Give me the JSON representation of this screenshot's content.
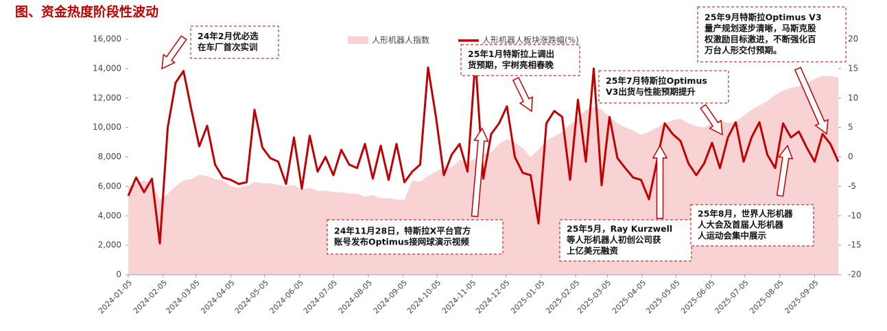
{
  "chart_data": {
    "type": "area-line",
    "title": "图、资金热度阶段性波动",
    "x": [
      "2024-01-05",
      "2024-01-12",
      "2024-01-19",
      "2024-01-26",
      "2024-02-02",
      "2024-02-09",
      "2024-02-16",
      "2024-02-23",
      "2024-03-01",
      "2024-03-08",
      "2024-03-15",
      "2024-03-22",
      "2024-03-29",
      "2024-04-05",
      "2024-04-12",
      "2024-04-19",
      "2024-04-26",
      "2024-05-03",
      "2024-05-10",
      "2024-05-17",
      "2024-05-24",
      "2024-05-31",
      "2024-06-07",
      "2024-06-14",
      "2024-06-21",
      "2024-06-28",
      "2024-07-05",
      "2024-07-12",
      "2024-07-19",
      "2024-07-26",
      "2024-08-02",
      "2024-08-09",
      "2024-08-16",
      "2024-08-23",
      "2024-08-30",
      "2024-09-06",
      "2024-09-13",
      "2024-09-20",
      "2024-09-27",
      "2024-10-04",
      "2024-10-11",
      "2024-10-18",
      "2024-10-25",
      "2024-11-01",
      "2024-11-08",
      "2024-11-15",
      "2024-11-22",
      "2024-11-29",
      "2024-12-06",
      "2024-12-13",
      "2024-12-20",
      "2024-12-27",
      "2025-01-03",
      "2025-01-10",
      "2025-01-17",
      "2025-01-24",
      "2025-01-31",
      "2025-02-07",
      "2025-02-14",
      "2025-02-21",
      "2025-02-28",
      "2025-03-07",
      "2025-03-14",
      "2025-03-21",
      "2025-03-28",
      "2025-04-04",
      "2025-04-11",
      "2025-04-18",
      "2025-04-25",
      "2025-05-02",
      "2025-05-09",
      "2025-05-16",
      "2025-05-23",
      "2025-05-30",
      "2025-06-06",
      "2025-06-13",
      "2025-06-20",
      "2025-06-27",
      "2025-07-04",
      "2025-07-11",
      "2025-07-18",
      "2025-07-25",
      "2025-08-01",
      "2025-08-08",
      "2025-08-15",
      "2025-08-22",
      "2025-08-29",
      "2025-09-05",
      "2025-09-12",
      "2025-09-19",
      "2025-09-26"
    ],
    "series": [
      {
        "name": "人形机器人指数",
        "kind": "area",
        "color": "#f9d3d3",
        "values": [
          6000,
          6200,
          6400,
          6200,
          5100,
          5500,
          6000,
          6400,
          6500,
          6800,
          6700,
          6500,
          6400,
          6000,
          5900,
          6000,
          6300,
          6200,
          6200,
          6100,
          6000,
          6100,
          5800,
          5900,
          5700,
          5700,
          5600,
          5600,
          5500,
          5500,
          5300,
          5400,
          5200,
          5200,
          5100,
          5100,
          6400,
          6300,
          6700,
          7000,
          7300,
          7300,
          7800,
          7600,
          7900,
          8200,
          8300,
          8900,
          9200,
          9000,
          8600,
          8000,
          8500,
          9100,
          9400,
          9700,
          10200,
          10600,
          11200,
          11400,
          11200,
          10700,
          10300,
          10000,
          9800,
          9500,
          9700,
          10000,
          10300,
          10500,
          10600,
          10300,
          10100,
          10000,
          10300,
          10500,
          10300,
          10400,
          10800,
          11200,
          11500,
          11800,
          12200,
          12500,
          12700,
          12800,
          13000,
          13300,
          13500,
          13500,
          13400
        ]
      },
      {
        "name": "人形机器人板块涨跌幅(%)",
        "kind": "line",
        "axis": "y2",
        "color": "#c00000",
        "values": [
          -6.6,
          -3.5,
          -6,
          -3.7,
          -14.7,
          5,
          12.6,
          14.6,
          8,
          1.8,
          5.3,
          -1.3,
          -3.5,
          -3.9,
          -4.6,
          -4.3,
          8,
          1.6,
          -0.2,
          -0.8,
          -4.6,
          3.3,
          -5.4,
          3.6,
          -2.5,
          0,
          -3.1,
          1.2,
          -1.3,
          -1.9,
          2.2,
          -3.7,
          1.9,
          -3.9,
          2.2,
          -4.3,
          -2.5,
          -1.3,
          15.2,
          6.8,
          -3.1,
          0.4,
          2.2,
          -2.5,
          16.4,
          -3.7,
          3.9,
          5.7,
          8.6,
          0,
          -2.7,
          -3.1,
          -11.3,
          5.7,
          7.8,
          6.8,
          -3.9,
          9.7,
          -0.8,
          15,
          -4.8,
          6.8,
          -0.2,
          -1.9,
          -3.5,
          -3.9,
          -7.2,
          -0.8,
          5.7,
          3.9,
          2.7,
          -1.1,
          -3.1,
          -1.1,
          2.4,
          -1.9,
          3.3,
          5.9,
          -0.8,
          3.3,
          5.9,
          0.4,
          -1.9,
          5.7,
          3.3,
          4.3,
          1.6,
          -0.8,
          3.9,
          2.2,
          -0.8
        ]
      }
    ],
    "xlim": [
      "2024-01-05",
      "2025-09-26"
    ],
    "xticks": [
      "2024-01-05",
      "2024-02-05",
      "2024-03-05",
      "2024-04-05",
      "2024-05-05",
      "2024-06-05",
      "2024-07-05",
      "2024-08-05",
      "2024-09-05",
      "2024-10-05",
      "2024-11-05",
      "2024-12-05",
      "2025-01-05",
      "2025-02-05",
      "2025-03-05",
      "2025-04-05",
      "2025-05-05",
      "2025-06-05",
      "2025-07-05",
      "2025-08-05",
      "2025-09-05"
    ],
    "ylim": [
      0,
      16000
    ],
    "yticks": [
      0,
      {
        "value": 2000,
        "label": "2,000"
      },
      {
        "value": 4000,
        "label": "4,000"
      },
      {
        "value": 6000,
        "label": "6,000"
      },
      {
        "value": 8000,
        "label": "8,000"
      },
      {
        "value": 10000,
        "label": "10,000"
      },
      {
        "value": 12000,
        "label": "12,000"
      },
      {
        "value": 14000,
        "label": "14,000"
      },
      {
        "value": 16000,
        "label": "16,000"
      }
    ],
    "y2lim": [
      -20,
      20
    ],
    "y2ticks": [
      -20,
      -15,
      -10,
      -5,
      0,
      5,
      10,
      15,
      20
    ],
    "annotations": [
      {
        "lines": [
          "24年2月优必选",
          "在车厂首次实训"
        ]
      },
      {
        "lines": [
          "25年1月特斯拉上调出",
          "货预期，宇树亮相春晚"
        ]
      },
      {
        "lines": [
          "25年7月特斯拉Optimus",
          "V3出货与性能预期提升"
        ]
      },
      {
        "lines": [
          "25年9月特斯拉Optimus V3",
          "量产规划逐步清晰，马斯克股",
          "权激励目标激进，不断强化百",
          "万台人形交付预期。"
        ]
      },
      {
        "lines": [
          "24年11月28日，特斯拉X平台官方",
          "账号发布Optimus接网球演示视频"
        ]
      },
      {
        "lines": [
          "25年5月，Ray Kurzwell",
          "等人形机器人初创公司获",
          "上亿美元融资"
        ]
      },
      {
        "lines": [
          "25年8月，世界人形机器",
          "人大会及首届人形机器",
          "人运动会集中展示"
        ]
      }
    ]
  }
}
